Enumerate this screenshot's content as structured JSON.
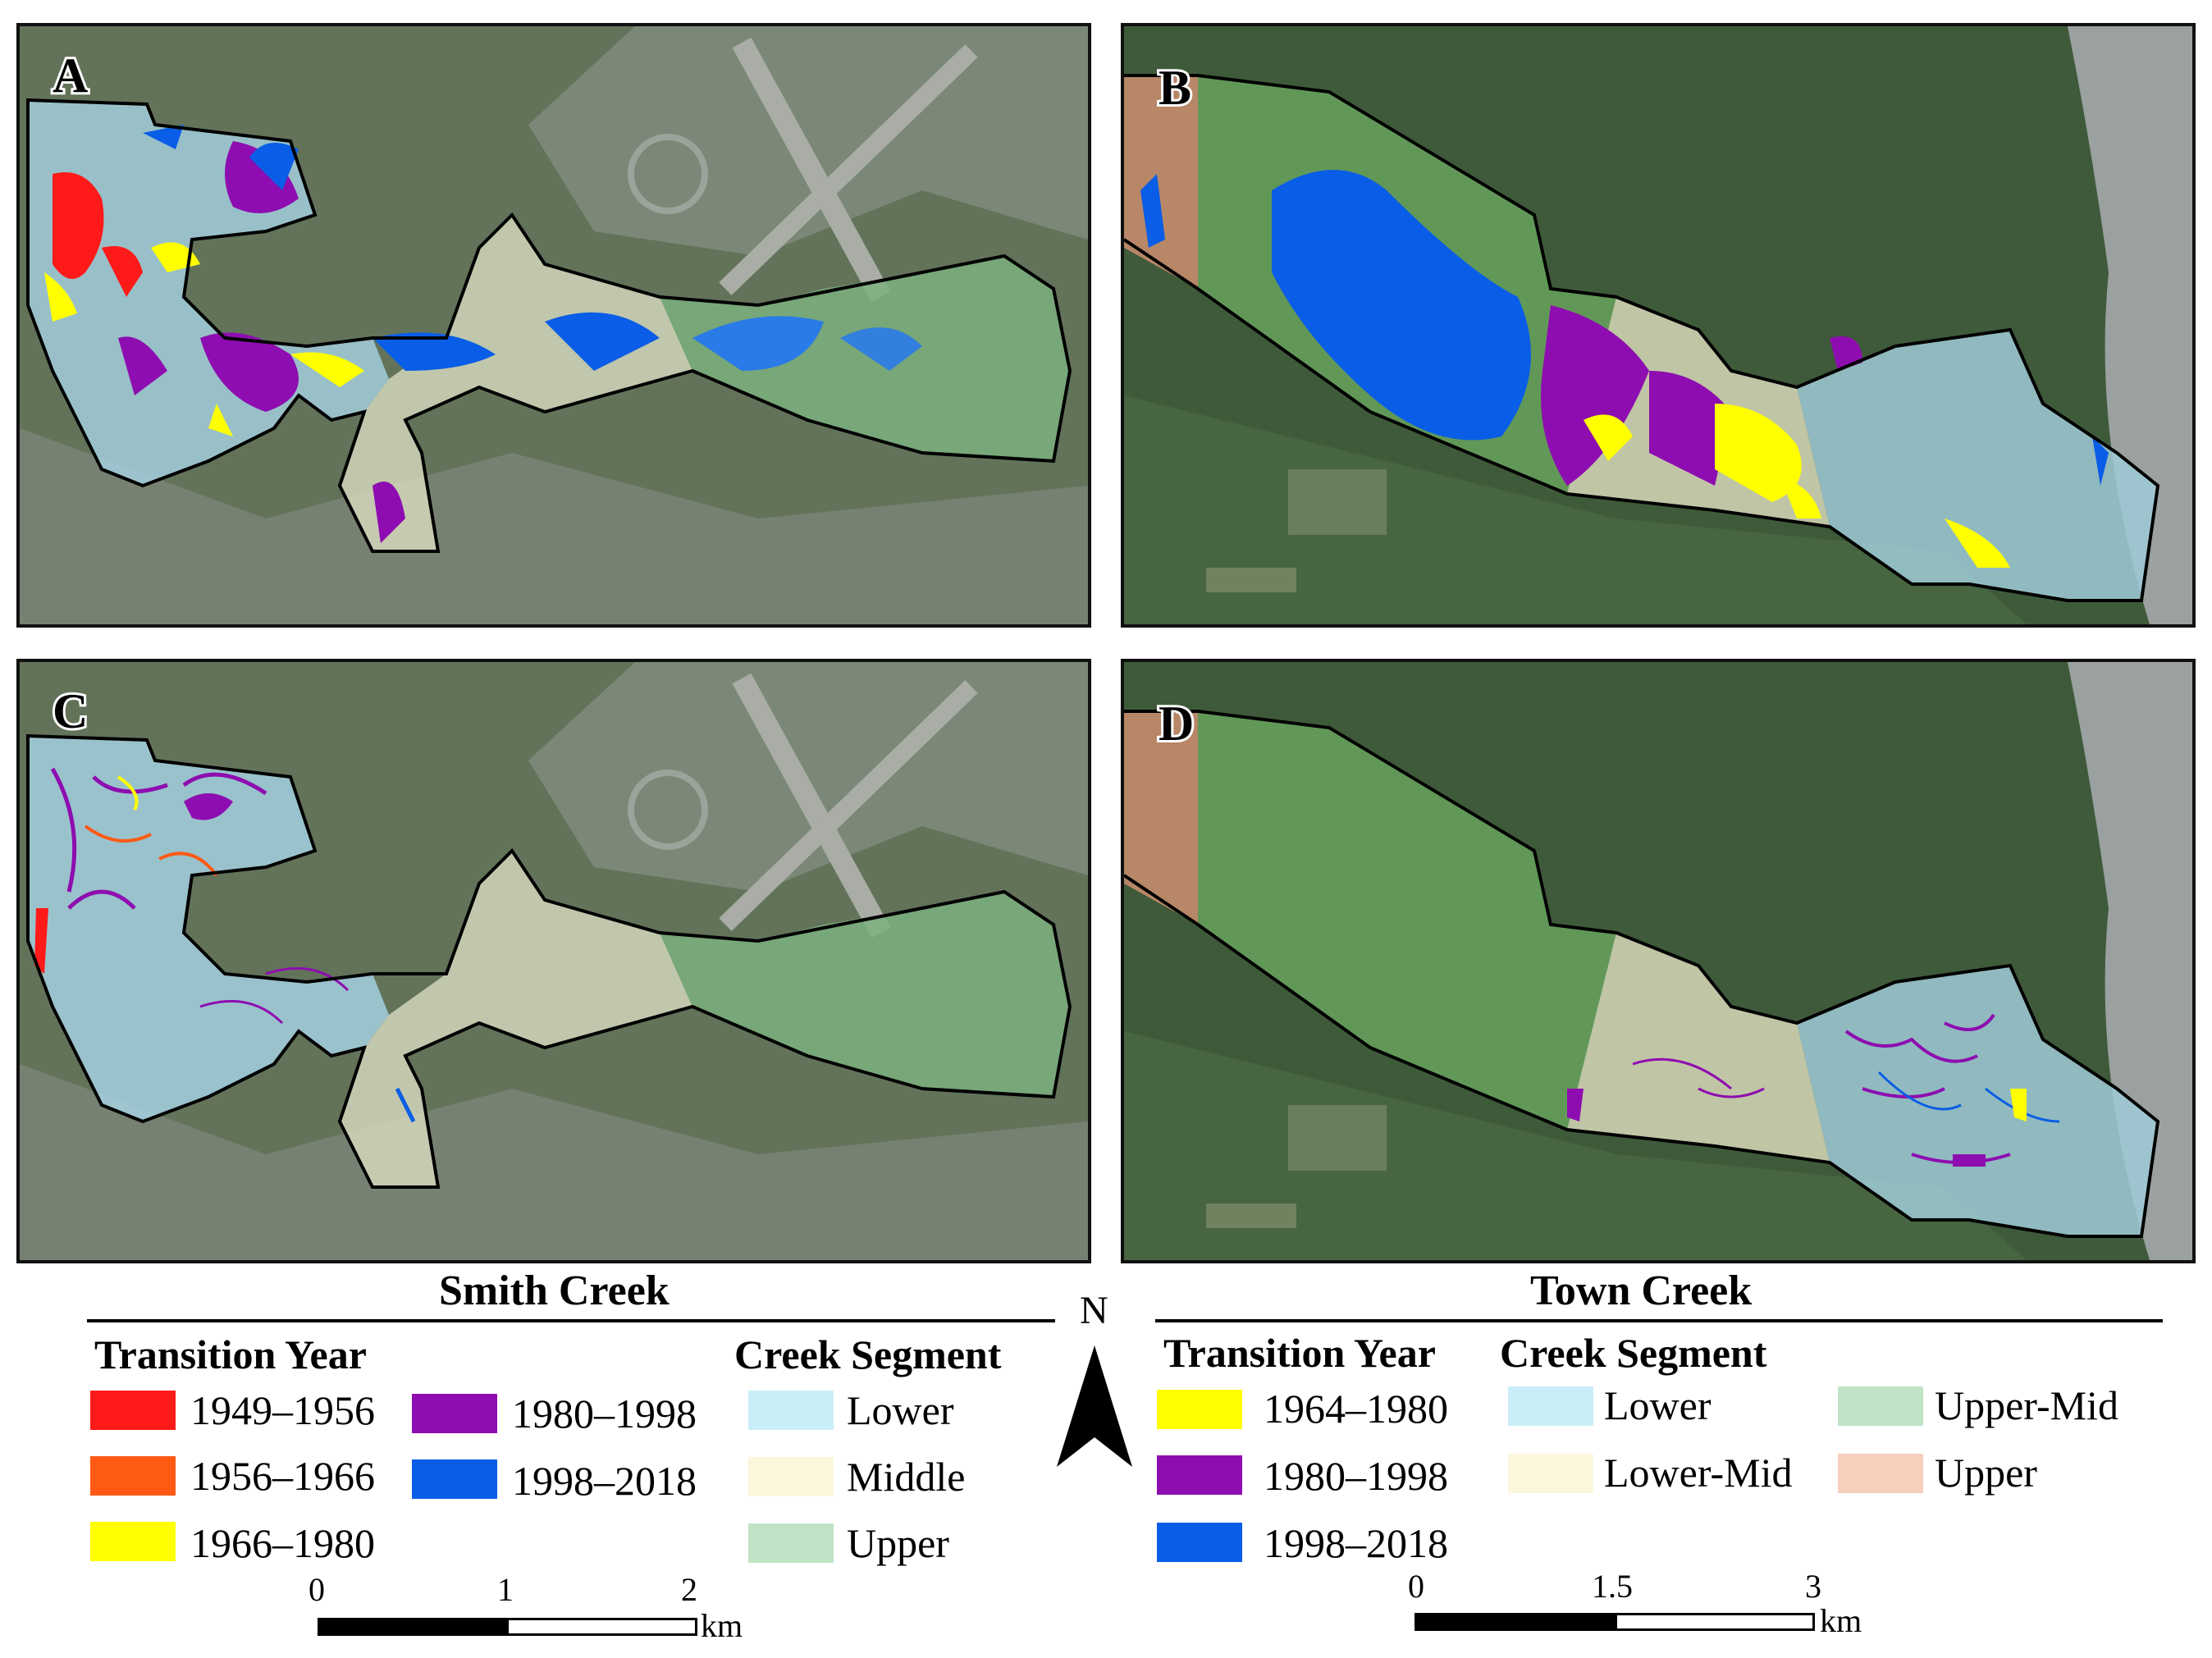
{
  "panels": [
    {
      "id": "A",
      "label": "A"
    },
    {
      "id": "B",
      "label": "B"
    },
    {
      "id": "C",
      "label": "C"
    },
    {
      "id": "D",
      "label": "D"
    }
  ],
  "smith": {
    "title": "Smith Creek",
    "transition_heading": "Transition Year",
    "segment_heading": "Creek Segment",
    "transition_items": [
      {
        "label": "1949–1956",
        "color": "#ff1a1a"
      },
      {
        "label": "1956–1966",
        "color": "#ff5a14"
      },
      {
        "label": "1966–1980",
        "color": "#ffff00"
      },
      {
        "label": "1980–1998",
        "color": "#8e0db0"
      },
      {
        "label": "1998–2018",
        "color": "#0a5de6"
      }
    ],
    "segment_items": [
      {
        "label": "Lower",
        "color": "#c9eef8"
      },
      {
        "label": "Middle",
        "color": "#fbf7dc"
      },
      {
        "label": "Upper",
        "color": "#bfe3c4"
      }
    ],
    "scale": {
      "ticks": [
        "0",
        "1",
        "2"
      ],
      "unit": "km"
    }
  },
  "town": {
    "title": "Town Creek",
    "transition_heading": "Transition Year",
    "segment_heading": "Creek Segment",
    "transition_items": [
      {
        "label": "1964–1980",
        "color": "#ffff00"
      },
      {
        "label": "1980–1998",
        "color": "#8e0db0"
      },
      {
        "label": "1998–2018",
        "color": "#0a5de6"
      }
    ],
    "segment_items": [
      {
        "label": "Lower",
        "color": "#c9eef8"
      },
      {
        "label": "Lower-Mid",
        "color": "#fbf7dc"
      },
      {
        "label": "Upper-Mid",
        "color": "#bfe3c4"
      },
      {
        "label": "Upper",
        "color": "#f6cfbd"
      }
    ],
    "scale": {
      "ticks": [
        "0",
        "1.5",
        "3"
      ],
      "unit": "km"
    }
  },
  "north_arrow": {
    "label": "N"
  }
}
